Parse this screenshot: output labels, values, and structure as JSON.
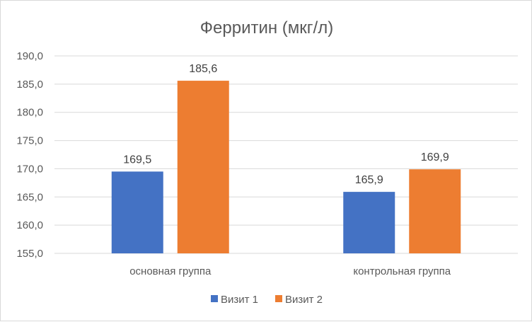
{
  "chart_data": {
    "type": "bar",
    "title": "Ферритин (мкг/л)",
    "categories": [
      "основная группа",
      "контрольная группа"
    ],
    "series": [
      {
        "name": "Визит 1",
        "values": [
          169.5,
          165.9
        ],
        "labels": [
          "169,5",
          "165,9"
        ],
        "color": "#4472C4"
      },
      {
        "name": "Визит 2",
        "values": [
          185.6,
          169.9
        ],
        "labels": [
          "185,6",
          "169,9"
        ],
        "color": "#ED7D31"
      }
    ],
    "ylim": [
      155,
      190
    ],
    "yticks": [
      155,
      160,
      165,
      170,
      175,
      180,
      185,
      190
    ],
    "ytick_labels": [
      "155,0",
      "160,0",
      "165,0",
      "170,0",
      "175,0",
      "180,0",
      "185,0",
      "190,0"
    ],
    "grid": true,
    "legend_position": "bottom",
    "xlabel": "",
    "ylabel": ""
  }
}
